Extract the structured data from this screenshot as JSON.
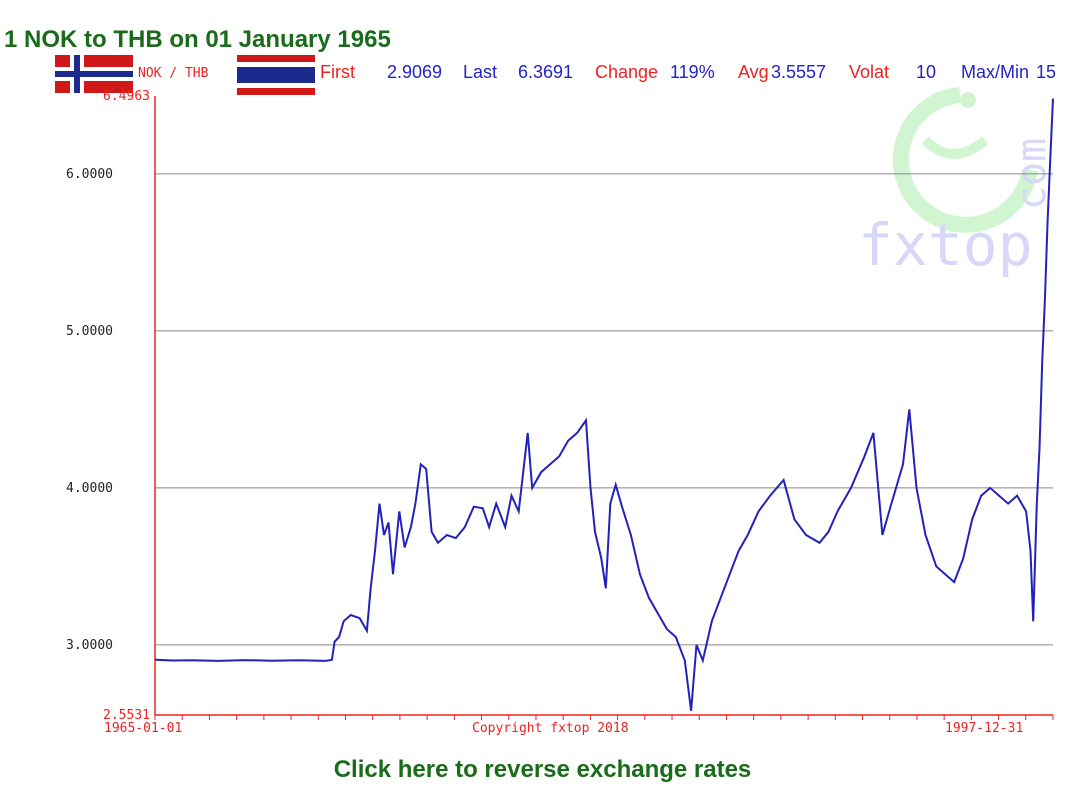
{
  "header": {
    "title": "1 NOK to THB on 01 January 1965",
    "pair_label": "NOK / THB"
  },
  "stats": [
    {
      "label": "First",
      "value": "2.9069",
      "label_color": "#ee2222",
      "value_color": "#2222cc"
    },
    {
      "label": "Last",
      "value": "6.3691",
      "label_color": "#2222cc",
      "value_color": "#2222cc"
    },
    {
      "label": "Change",
      "value": "119%",
      "label_color": "#ee2222",
      "value_color": "#2222cc"
    },
    {
      "label": "Avg",
      "value": "3.5557",
      "label_color": "#ee2222",
      "value_color": "#2222cc"
    },
    {
      "label": "Volat",
      "value": "10",
      "label_color": "#ee2222",
      "value_color": "#2222cc"
    },
    {
      "label": "Max/Min",
      "value": "15",
      "label_color": "#2222cc",
      "value_color": "#2222cc"
    }
  ],
  "chart_data": {
    "type": "line",
    "ylim": [
      2.5531,
      6.4963
    ],
    "ytick_labels": [
      "6.4963",
      "6.0000",
      "5.0000",
      "4.0000",
      "3.0000",
      "2.5531"
    ],
    "yticks": [
      6.4963,
      6.0,
      5.0,
      4.0,
      3.0,
      2.5531
    ],
    "gridlines": [
      6.0,
      5.0,
      4.0,
      3.0
    ],
    "x_start_label": "1965-01-01",
    "x_end_label": "1997-12-31",
    "center_label": "Copyright fxtop 2018",
    "grid": true,
    "series": [
      {
        "color": "#2222bb",
        "points": [
          [
            0.0,
            2.905
          ],
          [
            0.02,
            2.9
          ],
          [
            0.04,
            2.902
          ],
          [
            0.07,
            2.898
          ],
          [
            0.1,
            2.903
          ],
          [
            0.13,
            2.899
          ],
          [
            0.16,
            2.902
          ],
          [
            0.19,
            2.898
          ],
          [
            0.197,
            2.905
          ],
          [
            0.2,
            3.02
          ],
          [
            0.205,
            3.05
          ],
          [
            0.21,
            3.15
          ],
          [
            0.218,
            3.19
          ],
          [
            0.228,
            3.17
          ],
          [
            0.236,
            3.09
          ],
          [
            0.24,
            3.35
          ],
          [
            0.245,
            3.6
          ],
          [
            0.25,
            3.9
          ],
          [
            0.255,
            3.7
          ],
          [
            0.26,
            3.78
          ],
          [
            0.265,
            3.45
          ],
          [
            0.272,
            3.85
          ],
          [
            0.278,
            3.62
          ],
          [
            0.285,
            3.75
          ],
          [
            0.29,
            3.9
          ],
          [
            0.296,
            4.15
          ],
          [
            0.302,
            4.12
          ],
          [
            0.308,
            3.72
          ],
          [
            0.315,
            3.65
          ],
          [
            0.325,
            3.7
          ],
          [
            0.335,
            3.68
          ],
          [
            0.345,
            3.75
          ],
          [
            0.355,
            3.88
          ],
          [
            0.365,
            3.87
          ],
          [
            0.372,
            3.75
          ],
          [
            0.38,
            3.9
          ],
          [
            0.39,
            3.75
          ],
          [
            0.397,
            3.95
          ],
          [
            0.405,
            3.85
          ],
          [
            0.415,
            4.35
          ],
          [
            0.42,
            4.0
          ],
          [
            0.43,
            4.1
          ],
          [
            0.44,
            4.15
          ],
          [
            0.45,
            4.2
          ],
          [
            0.46,
            4.3
          ],
          [
            0.47,
            4.35
          ],
          [
            0.48,
            4.43
          ],
          [
            0.485,
            4.0
          ],
          [
            0.49,
            3.72
          ],
          [
            0.497,
            3.55
          ],
          [
            0.502,
            3.36
          ],
          [
            0.507,
            3.9
          ],
          [
            0.513,
            4.02
          ],
          [
            0.52,
            3.88
          ],
          [
            0.53,
            3.7
          ],
          [
            0.54,
            3.45
          ],
          [
            0.55,
            3.3
          ],
          [
            0.56,
            3.2
          ],
          [
            0.57,
            3.1
          ],
          [
            0.58,
            3.05
          ],
          [
            0.59,
            2.9
          ],
          [
            0.597,
            2.58
          ],
          [
            0.603,
            3.0
          ],
          [
            0.61,
            2.9
          ],
          [
            0.62,
            3.15
          ],
          [
            0.63,
            3.3
          ],
          [
            0.64,
            3.45
          ],
          [
            0.65,
            3.6
          ],
          [
            0.66,
            3.7
          ],
          [
            0.672,
            3.85
          ],
          [
            0.685,
            3.95
          ],
          [
            0.7,
            4.05
          ],
          [
            0.712,
            3.8
          ],
          [
            0.725,
            3.7
          ],
          [
            0.74,
            3.65
          ],
          [
            0.75,
            3.72
          ],
          [
            0.76,
            3.85
          ],
          [
            0.775,
            4.0
          ],
          [
            0.79,
            4.2
          ],
          [
            0.8,
            4.35
          ],
          [
            0.81,
            3.7
          ],
          [
            0.82,
            3.9
          ],
          [
            0.833,
            4.15
          ],
          [
            0.84,
            4.5
          ],
          [
            0.848,
            4.0
          ],
          [
            0.858,
            3.7
          ],
          [
            0.87,
            3.5
          ],
          [
            0.88,
            3.45
          ],
          [
            0.89,
            3.4
          ],
          [
            0.9,
            3.55
          ],
          [
            0.91,
            3.8
          ],
          [
            0.92,
            3.95
          ],
          [
            0.93,
            4.0
          ],
          [
            0.94,
            3.95
          ],
          [
            0.95,
            3.9
          ],
          [
            0.96,
            3.95
          ],
          [
            0.97,
            3.85
          ],
          [
            0.975,
            3.6
          ],
          [
            0.978,
            3.15
          ],
          [
            0.982,
            3.9
          ],
          [
            0.985,
            4.25
          ],
          [
            0.988,
            4.8
          ],
          [
            0.991,
            5.2
          ],
          [
            0.994,
            5.7
          ],
          [
            0.997,
            6.1
          ],
          [
            1.0,
            6.48
          ]
        ]
      }
    ]
  },
  "watermark": {
    "text": "fxtop",
    "side_text": "com"
  },
  "footer": {
    "reverse_label": "Click here to reverse exchange rates"
  }
}
